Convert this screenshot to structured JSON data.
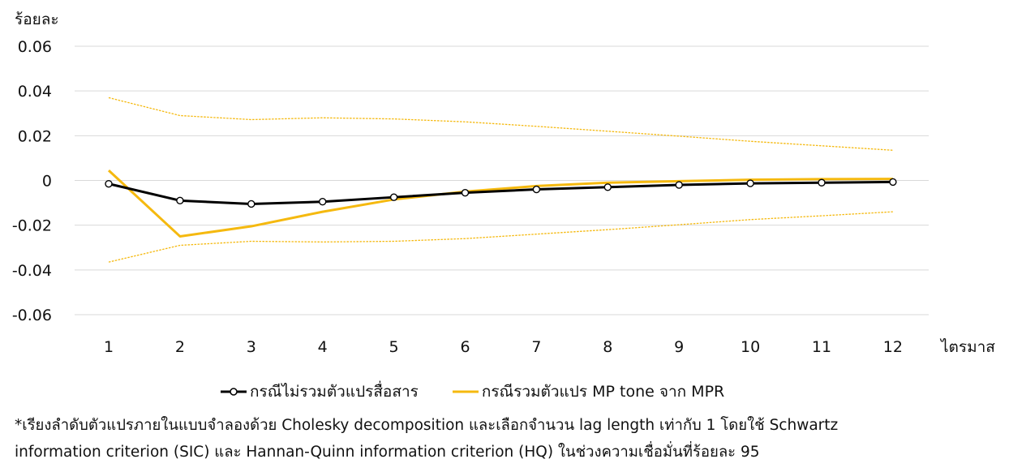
{
  "chart_data": {
    "type": "line",
    "ylabel": "ร้อยละ",
    "xlabel": "ไตรมาส",
    "x": [
      1,
      2,
      3,
      4,
      5,
      6,
      7,
      8,
      9,
      10,
      11,
      12
    ],
    "ylim": [
      -0.06,
      0.06
    ],
    "yticks": [
      "0.06",
      "0.04",
      "0.02",
      "0",
      "-0.02",
      "-0.04",
      "-0.06"
    ],
    "xticks": [
      "1",
      "2",
      "3",
      "4",
      "5",
      "6",
      "7",
      "8",
      "9",
      "10",
      "11",
      "12"
    ],
    "grid": true,
    "legend_position": "bottom",
    "series": [
      {
        "name": "กรณีไม่รวมตัวแปรสื่อสาร",
        "color": "#000000",
        "marker": "circle",
        "values": [
          -0.0015,
          -0.009,
          -0.0105,
          -0.0095,
          -0.0075,
          -0.0055,
          -0.004,
          -0.003,
          -0.002,
          -0.0013,
          -0.001,
          -0.0007
        ]
      },
      {
        "name": "กรณีรวมตัวแปร MP tone จาก MPR",
        "color": "#f5b90f",
        "values": [
          0.0045,
          -0.025,
          -0.0205,
          -0.014,
          -0.0085,
          -0.005,
          -0.0025,
          -0.001,
          -0.0003,
          0.0003,
          0.0006,
          0.0007
        ]
      },
      {
        "name": "upper-bound",
        "style": "dotted",
        "color": "#f5b90f",
        "values": [
          0.037,
          0.029,
          0.0272,
          0.028,
          0.0275,
          0.0262,
          0.0242,
          0.022,
          0.0198,
          0.0175,
          0.0155,
          0.0135
        ]
      },
      {
        "name": "lower-bound",
        "style": "dotted",
        "color": "#f5b90f",
        "values": [
          -0.0365,
          -0.029,
          -0.0272,
          -0.0275,
          -0.0272,
          -0.026,
          -0.024,
          -0.022,
          -0.0198,
          -0.0175,
          -0.0158,
          -0.014
        ]
      }
    ]
  },
  "legend": {
    "item1": "กรณีไม่รวมตัวแปรสื่อสาร",
    "item2": "กรณีรวมตัวแปร MP tone จาก MPR"
  },
  "footnote": {
    "line1": "*เรียงลำดับตัวแปรภายในแบบจำลองด้วย Cholesky decomposition และเลือกจำนวน lag length เท่ากับ 1 โดยใช้ Schwartz",
    "line2": "information criterion (SIC) และ Hannan-Quinn information criterion (HQ) ในช่วงความเชื่อมั่นที่ร้อยละ 95"
  }
}
